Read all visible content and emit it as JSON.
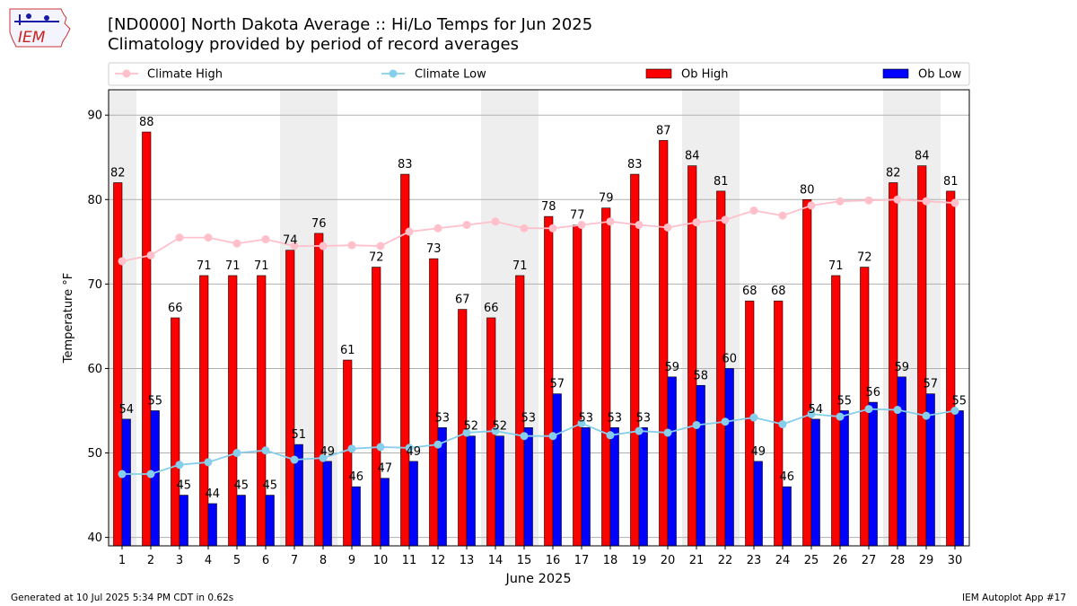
{
  "header": {
    "title_line1": "[ND0000] North Dakota Average :: Hi/Lo Temps for Jun 2025",
    "title_line2": "Climatology provided by period of record averages"
  },
  "logo": {
    "text": "IEM"
  },
  "footer": {
    "generated": "Generated at 10 Jul 2025 5:34 PM CDT in 0.62s",
    "app": "IEM Autoplot App #17"
  },
  "colors": {
    "ob_high": "#ff0000",
    "ob_low": "#0000ff",
    "climate_high": "#ffc0cb",
    "climate_low": "#87ceeb",
    "weekend_band": "#eeeeee"
  },
  "chart_data": {
    "type": "bar",
    "xlabel": "June 2025",
    "ylabel": "Temperature °F",
    "ylim": [
      39,
      93
    ],
    "yticks": [
      40,
      50,
      60,
      70,
      80,
      90
    ],
    "grid": "horizontal",
    "legend_placement": "top",
    "categories": [
      "1",
      "2",
      "3",
      "4",
      "5",
      "6",
      "7",
      "8",
      "9",
      "10",
      "11",
      "12",
      "13",
      "14",
      "15",
      "16",
      "17",
      "18",
      "19",
      "20",
      "21",
      "22",
      "23",
      "24",
      "25",
      "26",
      "27",
      "28",
      "29",
      "30"
    ],
    "shaded_days": [
      1,
      7,
      8,
      14,
      15,
      21,
      22,
      28,
      29
    ],
    "series": [
      {
        "name": "Climate High",
        "kind": "line",
        "values": [
          72.7,
          73.4,
          75.5,
          75.5,
          74.8,
          75.3,
          74.5,
          74.5,
          74.6,
          74.5,
          76.2,
          76.6,
          77.0,
          77.4,
          76.6,
          76.6,
          77.0,
          77.4,
          77.0,
          76.7,
          77.3,
          77.6,
          78.7,
          78.1,
          79.3,
          79.8,
          79.9,
          80.0,
          79.8,
          79.6
        ]
      },
      {
        "name": "Climate Low",
        "kind": "line",
        "values": [
          47.5,
          47.5,
          48.6,
          48.9,
          50.0,
          50.3,
          49.2,
          49.4,
          50.5,
          50.7,
          50.6,
          51.0,
          52.4,
          52.6,
          52.0,
          52.0,
          53.5,
          52.1,
          52.6,
          52.4,
          53.3,
          53.7,
          54.2,
          53.4,
          54.6,
          54.3,
          55.2,
          55.1,
          54.4,
          55.0
        ]
      },
      {
        "name": "Ob High",
        "kind": "bar",
        "values": [
          82,
          88,
          66,
          71,
          71,
          71,
          74,
          76,
          61,
          72,
          83,
          73,
          67,
          66,
          71,
          78,
          77,
          79,
          83,
          87,
          84,
          81,
          68,
          68,
          80,
          71,
          72,
          82,
          84,
          81
        ]
      },
      {
        "name": "Ob Low",
        "kind": "bar",
        "values": [
          54,
          55,
          45,
          44,
          45,
          45,
          51,
          49,
          46,
          47,
          49,
          53,
          52,
          52,
          53,
          57,
          53,
          53,
          53,
          59,
          58,
          60,
          49,
          46,
          54,
          55,
          56,
          59,
          57,
          55
        ]
      }
    ]
  }
}
